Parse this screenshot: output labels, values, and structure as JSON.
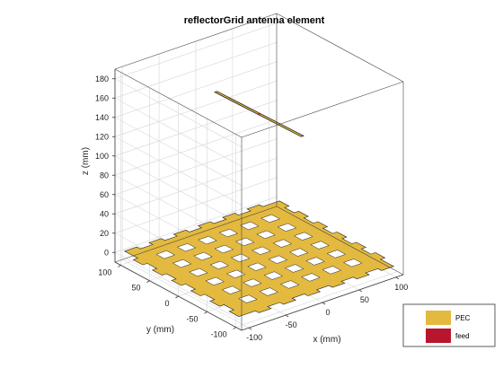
{
  "chart_data": {
    "type": "3d-surface",
    "title": "reflectorGrid antenna element",
    "xlabel": "x (mm)",
    "ylabel": "y (mm)",
    "zlabel": "z (mm)",
    "x_ticks": [
      -100,
      -50,
      0,
      50,
      100
    ],
    "y_ticks": [
      -100,
      -50,
      0,
      50,
      100
    ],
    "z_ticks": [
      0,
      20,
      40,
      60,
      80,
      100,
      120,
      140,
      160,
      180
    ],
    "xlim": [
      -110,
      110
    ],
    "ylim": [
      -110,
      110
    ],
    "zlim": [
      -10,
      190
    ],
    "grid": true,
    "reflector": {
      "center": [
        0,
        0,
        0
      ],
      "size": [
        200,
        200
      ],
      "hole_grid": [
        6,
        6
      ],
      "edge_notches": 6
    },
    "dipole": {
      "z": 150,
      "length": 150,
      "orientation": "along-y"
    },
    "legend_position": "bottom-right",
    "legend": [
      {
        "label": "PEC",
        "color": "#e3b93f"
      },
      {
        "label": "feed",
        "color": "#b8162c"
      }
    ]
  }
}
